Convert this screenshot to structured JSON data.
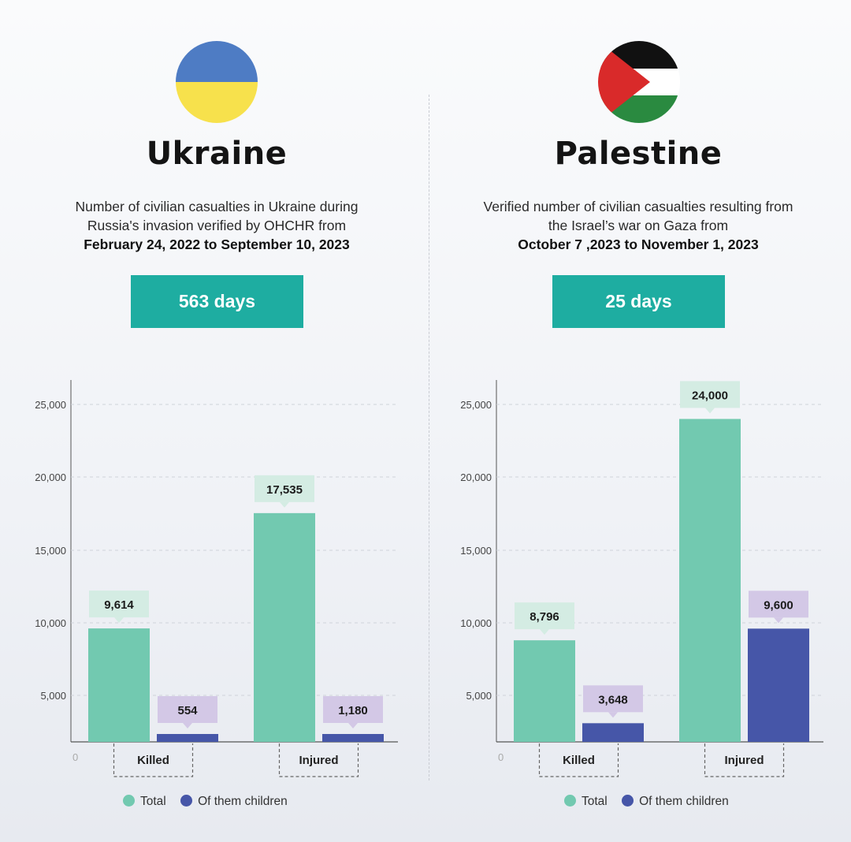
{
  "colors": {
    "total": "#72c9b0",
    "children": "#4656a8",
    "total_label_bg": "#d4ece3",
    "children_label_bg": "#d3c8e6",
    "accent": "#1eada1",
    "ukraine_blue": "#4e7cc4",
    "ukraine_yellow": "#f7e14c",
    "palestine_red": "#d92a2a",
    "palestine_green": "#2a8a40"
  },
  "ukraine": {
    "country": "Ukraine",
    "desc_line1": "Number of civilian casualties in Ukraine during",
    "desc_line2": "Russia's invasion verified by OHCHR from",
    "dates": "February 24, 2022 to September 10, 2023",
    "days": "563 days",
    "flag_icon": "ukraine-flag-icon"
  },
  "palestine": {
    "country": "Palestine",
    "desc_line1": "Verified number of civilian casualties resulting from",
    "desc_line2": "the Israel’s war on Gaza from",
    "dates": "October 7 ,2023 to November 1, 2023",
    "days": "25 days",
    "flag_icon": "palestine-flag-icon"
  },
  "legend": {
    "total": "Total",
    "children": "Of them children"
  },
  "chart_data": [
    {
      "type": "bar",
      "categories": [
        "Killed",
        "Injured"
      ],
      "series": [
        {
          "name": "Total",
          "values": [
            9614,
            17535
          ],
          "labels": [
            "9,614",
            "17,535"
          ]
        },
        {
          "name": "Of them children",
          "values": [
            554,
            1180
          ],
          "labels": [
            "554",
            "1,180"
          ]
        }
      ],
      "yticks": [
        "0",
        "5,000",
        "10,000",
        "15,000",
        "20,000",
        "25,000"
      ],
      "ylim": [
        0,
        25000
      ],
      "grid": true,
      "legend": "bottom"
    },
    {
      "type": "bar",
      "categories": [
        "Killed",
        "Injured"
      ],
      "series": [
        {
          "name": "Total",
          "values": [
            8796,
            24000
          ],
          "labels": [
            "8,796",
            "24,000"
          ]
        },
        {
          "name": "Of them children",
          "values": [
            3648,
            9600
          ],
          "labels": [
            "3,648",
            "9,600"
          ]
        }
      ],
      "yticks": [
        "0",
        "5,000",
        "10,000",
        "15,000",
        "20,000",
        "25,000"
      ],
      "ylim": [
        0,
        25000
      ],
      "grid": true,
      "legend": "bottom"
    }
  ]
}
